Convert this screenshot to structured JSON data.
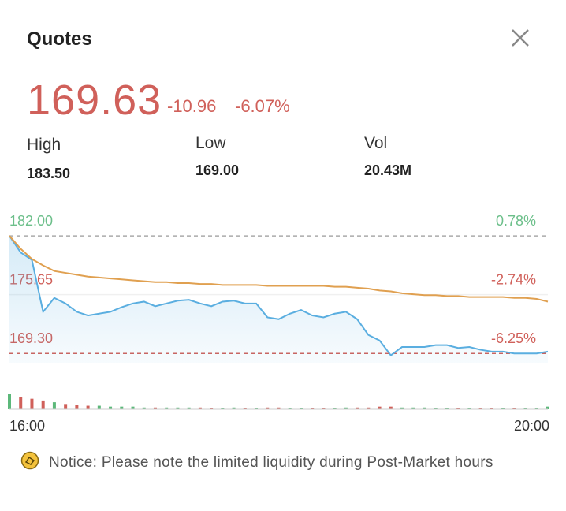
{
  "header": {
    "title": "Quotes"
  },
  "quote": {
    "price": "169.63",
    "change": "-10.96",
    "change_pct": "-6.07%"
  },
  "stats": [
    {
      "label": "High",
      "value": "183.50"
    },
    {
      "label": "Low",
      "value": "169.00"
    },
    {
      "label": "Vol",
      "value": "20.43M"
    }
  ],
  "chart_data": {
    "type": "line",
    "x": [
      0,
      5,
      10,
      15,
      20,
      25,
      30,
      35,
      40,
      45,
      50,
      55,
      60,
      65,
      70,
      75,
      80,
      85,
      90,
      95,
      100,
      105,
      110,
      115,
      120,
      125,
      130,
      135,
      140,
      145,
      150,
      155,
      160,
      165,
      170,
      175,
      180,
      185,
      190,
      195,
      200,
      205,
      210,
      215,
      220,
      225,
      230,
      235,
      240
    ],
    "xlim": [
      0,
      240
    ],
    "xticks": [
      {
        "value": 0,
        "label": "16:00"
      },
      {
        "value": 240,
        "label": "20:00"
      }
    ],
    "ylim": [
      168.3,
      184.9
    ],
    "yticks": [
      {
        "value": 182,
        "label": "182.00"
      },
      {
        "value": 175.65,
        "label": "175.65"
      },
      {
        "value": 169.3,
        "label": "169.30"
      }
    ],
    "y2lim": [
      -6.81,
      2.39
    ],
    "y2ticks": [
      {
        "value": 0.78,
        "label": "0.78%"
      },
      {
        "value": -2.74,
        "label": "-2.74%"
      },
      {
        "value": -6.25,
        "label": "-6.25%"
      }
    ],
    "series": [
      {
        "color": "#5aaee0",
        "values": [
          182.0,
          180.2,
          179.4,
          173.8,
          175.3,
          174.7,
          173.8,
          173.4,
          173.6,
          173.8,
          174.3,
          174.7,
          174.9,
          174.4,
          174.7,
          175.0,
          175.1,
          174.7,
          174.4,
          174.9,
          175.0,
          174.7,
          174.7,
          173.2,
          173.0,
          173.6,
          174.0,
          173.4,
          173.2,
          173.6,
          173.8,
          173.0,
          171.3,
          170.7,
          169.1,
          170.0,
          170.0,
          170.0,
          170.2,
          170.2,
          169.9,
          170.0,
          169.7,
          169.5,
          169.5,
          169.3,
          169.3,
          169.3,
          169.5
        ]
      },
      {
        "color": "#e0a050",
        "values": [
          182.0,
          180.6,
          179.5,
          178.8,
          178.2,
          178.0,
          177.8,
          177.6,
          177.5,
          177.4,
          177.3,
          177.2,
          177.1,
          177.0,
          177.0,
          176.9,
          176.9,
          176.8,
          176.8,
          176.7,
          176.7,
          176.7,
          176.7,
          176.6,
          176.6,
          176.6,
          176.6,
          176.6,
          176.6,
          176.5,
          176.5,
          176.4,
          176.3,
          176.1,
          176.0,
          175.8,
          175.7,
          175.6,
          175.6,
          175.5,
          175.5,
          175.4,
          175.4,
          175.4,
          175.4,
          175.3,
          175.3,
          175.2,
          174.9
        ]
      }
    ],
    "volume": {
      "values": [
        18,
        14,
        12,
        10,
        8,
        6,
        5,
        4,
        4,
        3,
        3,
        3,
        2,
        2,
        2,
        2,
        2,
        2,
        1,
        1,
        2,
        1,
        1,
        2,
        2,
        1,
        1,
        1,
        1,
        1,
        2,
        2,
        2,
        3,
        3,
        2,
        2,
        2,
        1,
        1,
        1,
        1,
        1,
        1,
        1,
        1,
        1,
        1,
        3
      ],
      "up_color": "#5cb87a",
      "down_color": "#d0605a"
    }
  },
  "notice": "Notice: Please note the limited liquidity during Post-Market hours"
}
